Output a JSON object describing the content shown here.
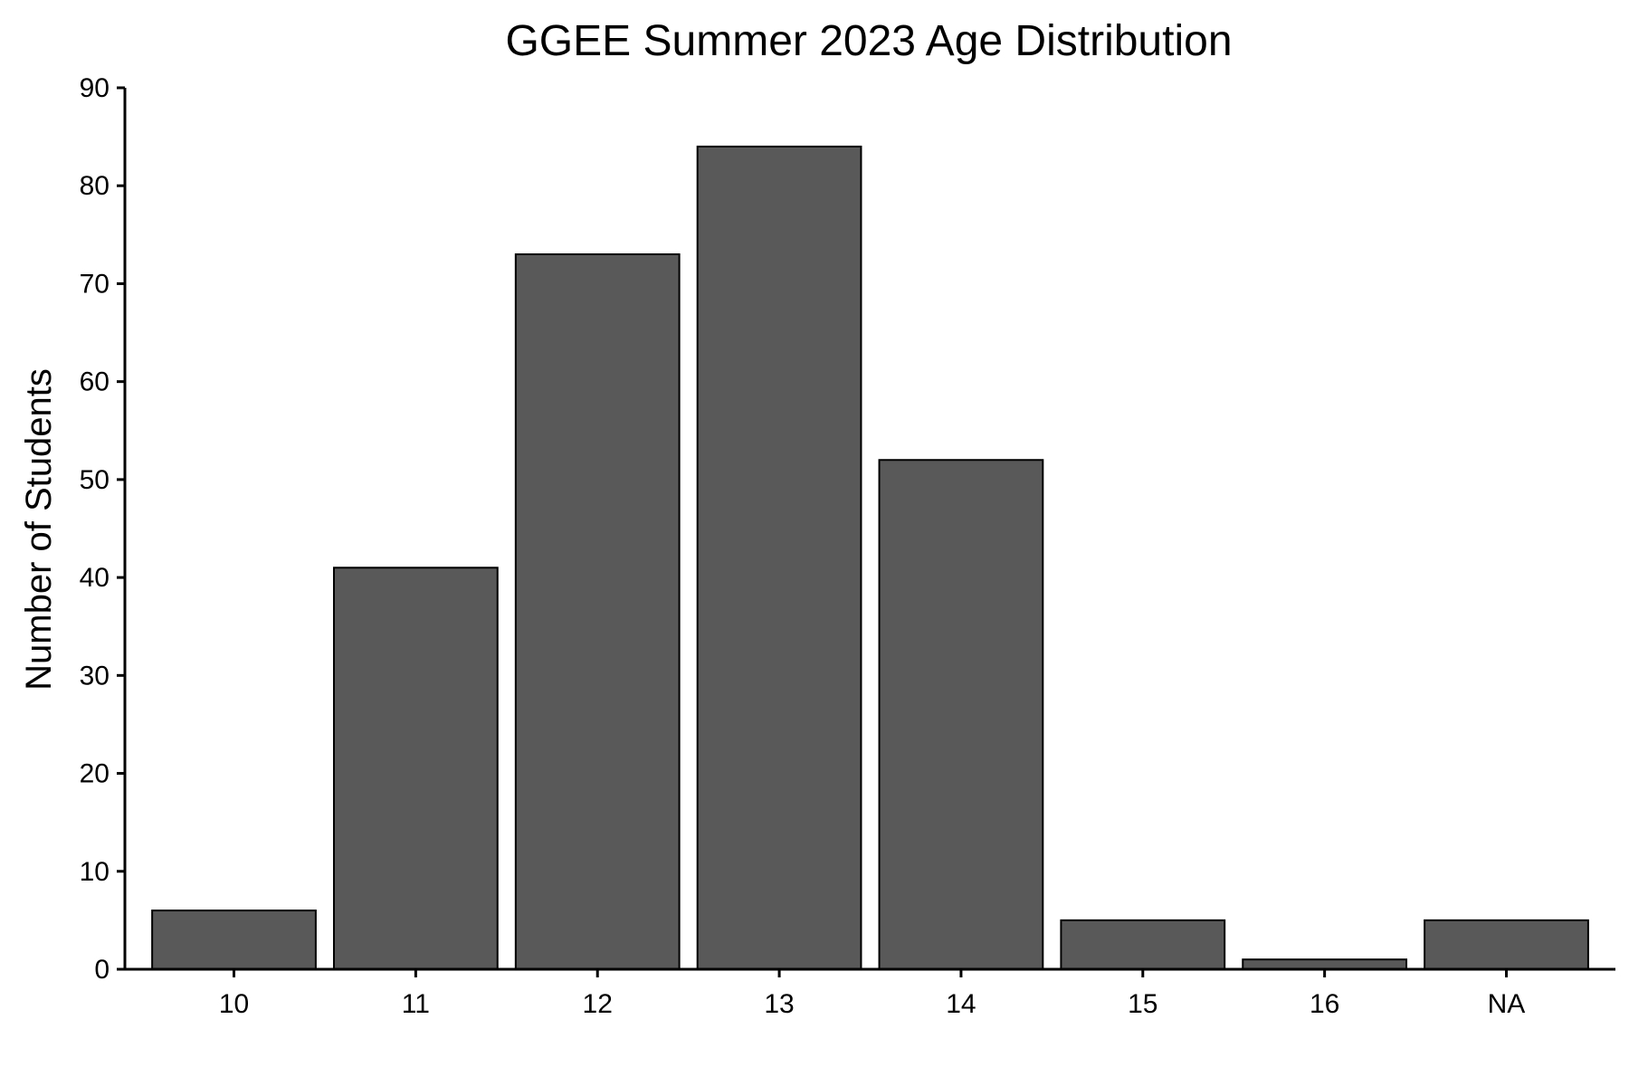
{
  "chart_data": {
    "type": "bar",
    "title": "GGEE Summer 2023 Age Distribution",
    "xlabel": "",
    "ylabel": "Number of Students",
    "categories": [
      "10",
      "11",
      "12",
      "13",
      "14",
      "15",
      "16",
      "NA"
    ],
    "values": [
      6,
      41,
      73,
      84,
      52,
      5,
      1,
      5
    ],
    "ylim": [
      0,
      90
    ],
    "yticks": [
      0,
      10,
      20,
      30,
      40,
      50,
      60,
      70,
      80,
      90
    ],
    "grid": false,
    "legend": "none",
    "colors": {
      "bar_fill": "#595959",
      "bar_stroke": "#000000"
    }
  }
}
